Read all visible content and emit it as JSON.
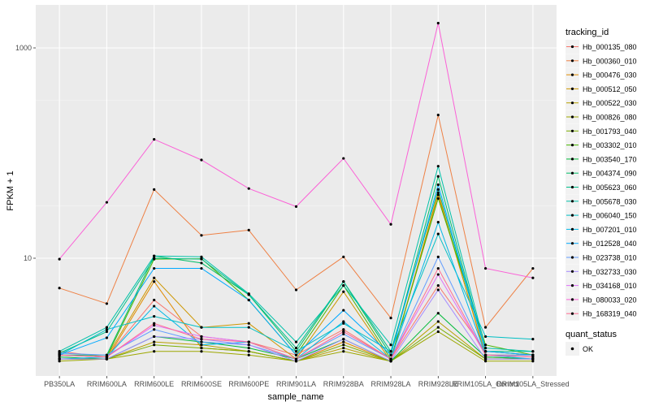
{
  "chart_data": {
    "type": "line",
    "x_label": "sample_name",
    "y_label": "FPKM + 1",
    "y_scale": "log10",
    "y_ticks": [
      10,
      1000
    ],
    "y_tick_labels": [
      "10",
      "1000"
    ],
    "grid": true,
    "legend_placement": "right",
    "categories": [
      "PB350LA",
      "RRIM600LA",
      "RRIM600LE",
      "RRIM600SE",
      "RRIM600PE",
      "RRIM901LA",
      "RRIM928BA",
      "RRIM928LA",
      "RRIM928LE",
      "RRIM105LA_Control",
      "RRIM105LA_Stressed"
    ],
    "legend_title": "tracking_id",
    "legend2_title": "quant_status",
    "legend2_label": "OK",
    "series": [
      {
        "name": "Hb_000135_080",
        "color": "#F8766D",
        "values": [
          1.3,
          1.15,
          4.0,
          1.8,
          1.6,
          1.2,
          2.1,
          1.1,
          5.5,
          1.3,
          1.2
        ]
      },
      {
        "name": "Hb_000360_010",
        "color": "#EE8044",
        "values": [
          5.2,
          3.7,
          45,
          16.5,
          18.5,
          5.0,
          10.3,
          2.7,
          230,
          2.2,
          8.0
        ]
      },
      {
        "name": "Hb_000476_030",
        "color": "#E08B00",
        "values": [
          1.1,
          1.1,
          6.0,
          1.4,
          1.3,
          1.05,
          1.6,
          1.05,
          42,
          1.15,
          1.1
        ]
      },
      {
        "name": "Hb_000512_050",
        "color": "#CD9600",
        "values": [
          1.2,
          1.15,
          6.5,
          2.2,
          2.4,
          1.1,
          4.8,
          1.05,
          40,
          1.2,
          1.2
        ]
      },
      {
        "name": "Hb_000522_030",
        "color": "#B79F00",
        "values": [
          1.1,
          1.1,
          1.6,
          1.5,
          1.3,
          1.05,
          1.4,
          1.05,
          2.5,
          1.1,
          1.1
        ]
      },
      {
        "name": "Hb_000826_080",
        "color": "#9DA700",
        "values": [
          1.05,
          1.1,
          1.3,
          1.3,
          1.2,
          1.05,
          1.3,
          1.05,
          2.0,
          1.05,
          1.05
        ]
      },
      {
        "name": "Hb_001793_040",
        "color": "#7CAE00",
        "values": [
          1.1,
          1.1,
          1.5,
          1.4,
          1.3,
          1.05,
          1.5,
          1.05,
          2.2,
          1.1,
          1.1
        ]
      },
      {
        "name": "Hb_003302_010",
        "color": "#49B500",
        "values": [
          1.2,
          1.15,
          9.8,
          9.9,
          4.0,
          1.2,
          5.5,
          1.1,
          37,
          1.5,
          1.2
        ]
      },
      {
        "name": "Hb_003540_170",
        "color": "#00BA38",
        "values": [
          1.15,
          1.1,
          1.8,
          1.6,
          1.4,
          1.1,
          1.7,
          1.05,
          3.0,
          1.15,
          1.1
        ]
      },
      {
        "name": "Hb_004374_090",
        "color": "#00BE67",
        "values": [
          1.2,
          1.2,
          10.5,
          9.0,
          4.5,
          1.3,
          6.0,
          1.2,
          60,
          1.3,
          1.2
        ]
      },
      {
        "name": "Hb_005623_060",
        "color": "#00C08B",
        "values": [
          1.25,
          2.0,
          10.0,
          9.8,
          4.5,
          1.4,
          6.0,
          1.3,
          45,
          1.3,
          1.3
        ]
      },
      {
        "name": "Hb_005678_030",
        "color": "#00C1A9",
        "values": [
          1.3,
          2.2,
          10.5,
          10.3,
          4.6,
          1.6,
          5.5,
          1.5,
          75,
          1.4,
          1.3
        ]
      },
      {
        "name": "Hb_006040_150",
        "color": "#00BFC4",
        "values": [
          1.2,
          2.1,
          2.8,
          2.2,
          2.2,
          1.3,
          2.4,
          1.3,
          17,
          1.8,
          1.7
        ]
      },
      {
        "name": "Hb_007201_010",
        "color": "#00B8E7",
        "values": [
          1.1,
          1.15,
          3.5,
          1.5,
          1.6,
          1.1,
          2.5,
          1.1,
          22,
          1.2,
          1.1
        ]
      },
      {
        "name": "Hb_012528_040",
        "color": "#00A9FF",
        "values": [
          1.2,
          1.75,
          8.0,
          8.0,
          4.0,
          1.2,
          3.2,
          1.2,
          50,
          1.3,
          1.2
        ]
      },
      {
        "name": "Hb_023738_010",
        "color": "#619CFF",
        "values": [
          1.25,
          1.2,
          2.1,
          1.6,
          1.5,
          1.1,
          1.9,
          1.1,
          10.3,
          1.2,
          1.2
        ]
      },
      {
        "name": "Hb_032733_030",
        "color": "#A58AFF",
        "values": [
          1.1,
          1.1,
          1.8,
          1.7,
          1.5,
          1.05,
          1.7,
          1.05,
          5.0,
          1.1,
          1.1
        ]
      },
      {
        "name": "Hb_034168_010",
        "color": "#DF70F8",
        "values": [
          1.2,
          1.15,
          2.3,
          1.8,
          1.6,
          1.1,
          2.0,
          1.1,
          7.0,
          1.2,
          1.15
        ]
      },
      {
        "name": "Hb_080033_020",
        "color": "#FB61D7",
        "values": [
          9.8,
          34,
          135,
          86,
          46,
          31,
          89,
          21,
          1720,
          8.0,
          6.5
        ]
      },
      {
        "name": "Hb_168319_040",
        "color": "#FF6C91",
        "values": [
          1.2,
          1.15,
          2.4,
          1.7,
          1.6,
          1.1,
          2.0,
          1.1,
          8.0,
          1.2,
          1.15
        ]
      }
    ]
  }
}
